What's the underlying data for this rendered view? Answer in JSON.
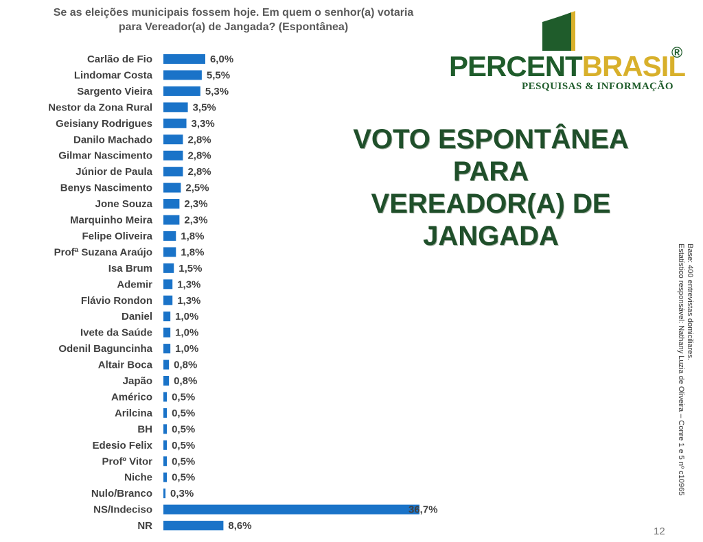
{
  "question": {
    "line1": "Se as eleições municipais fossem hoje. Em quem o senhor(a) votaria",
    "line2": "para Vereador(a) de Jangada? (Espontânea)"
  },
  "logo": {
    "brand_part1": "PERCENT",
    "brand_part2": "BRASIL",
    "registered": "®",
    "tagline": "PESQUISAS & INFORMAÇÃO",
    "colors": {
      "green": "#1f5c2b",
      "gold": "#d8b02b"
    }
  },
  "headline": {
    "line1": "VOTO ESPONTÂNEA PARA",
    "line2": "VEREADOR(A) DE JANGADA"
  },
  "note": {
    "line1": "Base: 400 entrevistas domiciliares.",
    "line2": "Estatístico responsável: Nathany Luzia de Oliveira – Conre 1 e 5 nº c10965"
  },
  "page_number": "12",
  "chart_data": {
    "type": "bar",
    "orientation": "horizontal",
    "bar_color": "#1a73c8",
    "categories": [
      "Carlão de Fio",
      "Lindomar Costa",
      "Sargento Vieira",
      "Nestor da Zona Rural",
      "Geisiany Rodrigues",
      "Danilo Machado",
      "Gilmar Nascimento",
      "Júnior de Paula",
      "Benys Nascimento",
      "Jone Souza",
      "Marquinho Meira",
      "Felipe Oliveira",
      "Profª Suzana Araújo",
      "Isa Brum",
      "Ademir",
      "Flávio Rondon",
      "Daniel",
      "Ivete da Saúde",
      "Odenil Baguncinha",
      "Altair Boca",
      "Japão",
      "Américo",
      "Arilcina",
      "BH",
      "Edesio Felix",
      "Profº Vitor",
      "Niche",
      "Nulo/Branco",
      "NS/Indeciso",
      "NR"
    ],
    "values": [
      6.0,
      5.5,
      5.3,
      3.5,
      3.3,
      2.8,
      2.8,
      2.8,
      2.5,
      2.3,
      2.3,
      1.8,
      1.8,
      1.5,
      1.3,
      1.3,
      1.0,
      1.0,
      1.0,
      0.8,
      0.8,
      0.5,
      0.5,
      0.5,
      0.5,
      0.5,
      0.5,
      0.3,
      36.7,
      8.6
    ],
    "value_labels": [
      "6,0%",
      "5,5%",
      "5,3%",
      "3,5%",
      "3,3%",
      "2,8%",
      "2,8%",
      "2,8%",
      "2,5%",
      "2,3%",
      "2,3%",
      "1,8%",
      "1,8%",
      "1,5%",
      "1,3%",
      "1,3%",
      "1,0%",
      "1,0%",
      "1,0%",
      "0,8%",
      "0,8%",
      "0,5%",
      "0,5%",
      "0,5%",
      "0,5%",
      "0,5%",
      "0,5%",
      "0,3%",
      "36,7%",
      "8,6%"
    ],
    "xlim": [
      0,
      36.7
    ],
    "grid": false,
    "legend": "none"
  }
}
